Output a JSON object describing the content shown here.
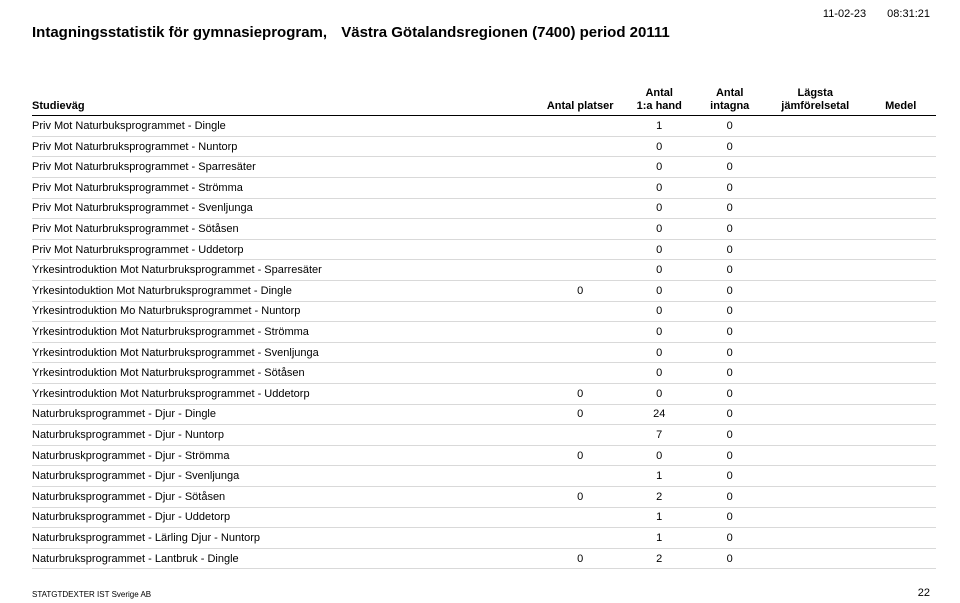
{
  "meta": {
    "date": "11-02-23",
    "time": "08:31:21",
    "title_part1": "Intagningsstatistik för gymnasieprogram,",
    "title_part2": "Västra Götalandsregionen (7400) period 20111",
    "footer_left": "STATGTDEXTER IST Sverige AB",
    "page_number": "22"
  },
  "columns": {
    "studievag": "Studieväg",
    "platser": "Antal platser",
    "hand_l1": "Antal",
    "hand_l2": "1:a hand",
    "intagna_l1": "Antal",
    "intagna_l2": "intagna",
    "jamf_l1": "Lägsta",
    "jamf_l2": "jämförelsetal",
    "medel": "Medel"
  },
  "rows": [
    {
      "name": "Priv Mot Naturbuksprogrammet - Dingle",
      "platser": "",
      "hand": "1",
      "intagna": "0",
      "jamf": "",
      "medel": ""
    },
    {
      "name": "Priv Mot Naturbruksprogrammet - Nuntorp",
      "platser": "",
      "hand": "0",
      "intagna": "0",
      "jamf": "",
      "medel": ""
    },
    {
      "name": "Priv Mot Naturbruksprogrammet - Sparresäter",
      "platser": "",
      "hand": "0",
      "intagna": "0",
      "jamf": "",
      "medel": ""
    },
    {
      "name": "Priv Mot Naturbruksprogrammet - Strömma",
      "platser": "",
      "hand": "0",
      "intagna": "0",
      "jamf": "",
      "medel": ""
    },
    {
      "name": "Priv Mot Naturbruksprogrammet - Svenljunga",
      "platser": "",
      "hand": "0",
      "intagna": "0",
      "jamf": "",
      "medel": ""
    },
    {
      "name": "Priv Mot Naturbruksprogrammet - Sötåsen",
      "platser": "",
      "hand": "0",
      "intagna": "0",
      "jamf": "",
      "medel": ""
    },
    {
      "name": "Priv Mot Naturbruksprogrammet - Uddetorp",
      "platser": "",
      "hand": "0",
      "intagna": "0",
      "jamf": "",
      "medel": ""
    },
    {
      "name": "Yrkesintroduktion Mot Naturbruksprogrammet - Sparresäter",
      "platser": "",
      "hand": "0",
      "intagna": "0",
      "jamf": "",
      "medel": ""
    },
    {
      "name": "Yrkesintoduktion Mot Naturbruksprogrammet - Dingle",
      "platser": "0",
      "hand": "0",
      "intagna": "0",
      "jamf": "",
      "medel": ""
    },
    {
      "name": "Yrkesintroduktion Mo Naturbruksprogrammet - Nuntorp",
      "platser": "",
      "hand": "0",
      "intagna": "0",
      "jamf": "",
      "medel": ""
    },
    {
      "name": "Yrkesintroduktion Mot Naturbruksprogrammet - Strömma",
      "platser": "",
      "hand": "0",
      "intagna": "0",
      "jamf": "",
      "medel": ""
    },
    {
      "name": "Yrkesintroduktion Mot Naturbruksprogrammet - Svenljunga",
      "platser": "",
      "hand": "0",
      "intagna": "0",
      "jamf": "",
      "medel": ""
    },
    {
      "name": "Yrkesintroduktion Mot Naturbruksprogrammet - Sötåsen",
      "platser": "",
      "hand": "0",
      "intagna": "0",
      "jamf": "",
      "medel": ""
    },
    {
      "name": "Yrkesintroduktion Mot Naturbruksprogrammet - Uddetorp",
      "platser": "0",
      "hand": "0",
      "intagna": "0",
      "jamf": "",
      "medel": ""
    },
    {
      "name": "Naturbruksprogrammet - Djur - Dingle",
      "platser": "0",
      "hand": "24",
      "intagna": "0",
      "jamf": "",
      "medel": ""
    },
    {
      "name": "Naturbruksprogrammet - Djur - Nuntorp",
      "platser": "",
      "hand": "7",
      "intagna": "0",
      "jamf": "",
      "medel": ""
    },
    {
      "name": "Naturbruskprogrammet - Djur - Strömma",
      "platser": "0",
      "hand": "0",
      "intagna": "0",
      "jamf": "",
      "medel": ""
    },
    {
      "name": "Naturbruksprogrammet - Djur - Svenljunga",
      "platser": "",
      "hand": "1",
      "intagna": "0",
      "jamf": "",
      "medel": ""
    },
    {
      "name": "Naturbruksprogrammet - Djur - Sötåsen",
      "platser": "0",
      "hand": "2",
      "intagna": "0",
      "jamf": "",
      "medel": ""
    },
    {
      "name": "Naturbruksprogrammet - Djur - Uddetorp",
      "platser": "",
      "hand": "1",
      "intagna": "0",
      "jamf": "",
      "medel": ""
    },
    {
      "name": "Naturbruksprogrammet - Lärling Djur - Nuntorp",
      "platser": "",
      "hand": "1",
      "intagna": "0",
      "jamf": "",
      "medel": ""
    },
    {
      "name": "Naturbruksprogrammet - Lantbruk - Dingle",
      "platser": "0",
      "hand": "2",
      "intagna": "0",
      "jamf": "",
      "medel": ""
    }
  ]
}
